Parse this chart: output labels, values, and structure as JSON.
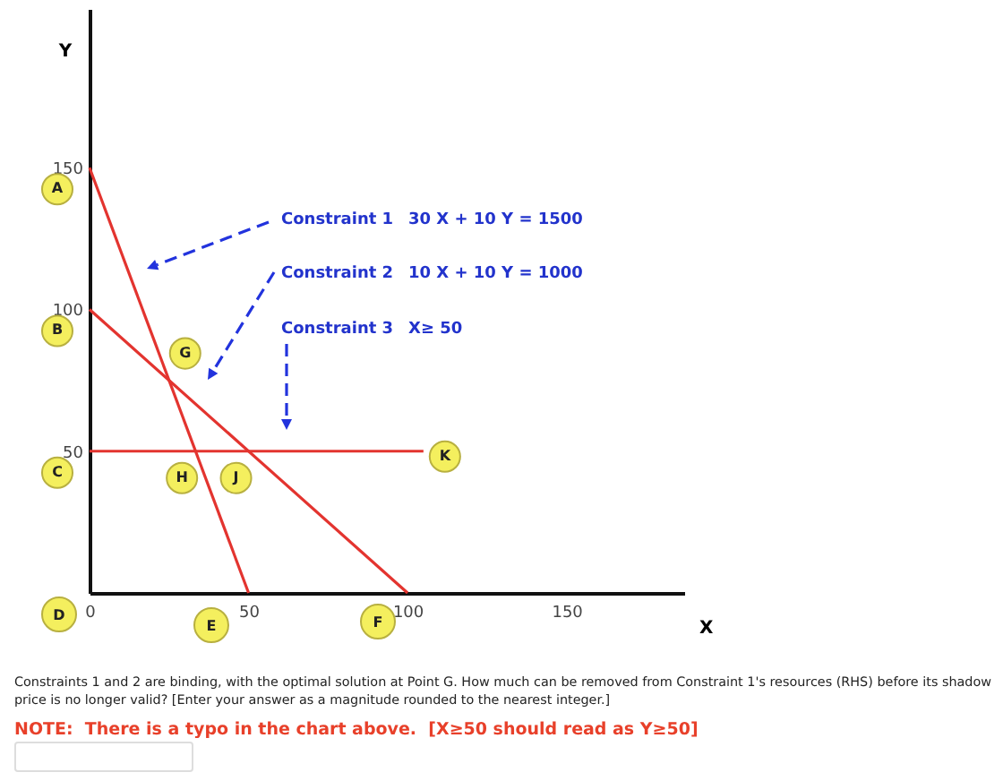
{
  "chart_data": {
    "type": "line",
    "xlabel": "X",
    "ylabel": "Y",
    "xlim": [
      0,
      187
    ],
    "ylim": [
      0,
      206
    ],
    "xticks": [
      0,
      50,
      100,
      150
    ],
    "yticks": [
      50,
      100,
      150
    ],
    "line_style": "solid",
    "marker": "none",
    "series": [
      {
        "color": "#e3342f",
        "x": [
          0,
          50
        ],
        "values": [
          150,
          0
        ]
      },
      {
        "color": "#e3342f",
        "x": [
          0,
          100
        ],
        "values": [
          100,
          0
        ]
      },
      {
        "color": "#e3342f",
        "x": [
          0,
          105
        ],
        "values": [
          50,
          50
        ]
      }
    ],
    "annotations": [
      {
        "text": "A",
        "x": 0,
        "y": 150
      },
      {
        "text": "B",
        "x": 0,
        "y": 100
      },
      {
        "text": "C",
        "x": 0,
        "y": 50
      },
      {
        "text": "G",
        "x": 25,
        "y": 75
      },
      {
        "text": "H",
        "x": 33,
        "y": 50
      },
      {
        "text": "J",
        "x": 50,
        "y": 50
      },
      {
        "text": "K",
        "x": 105,
        "y": 50
      },
      "D",
      "E",
      "F",
      "Constraint 1",
      "30 X + 10 Y = 1500",
      "Constraint 2",
      "10 X + 10 Y = 1000",
      "Constraint 3",
      "X≥ 50",
      "Constraints 1 and 2 are binding, with the optimal solution at Point G.   How much can be removed from Constraint 1's resources (RHS) before its shadow price is no longer valid?  [Enter your answer as a magnitude rounded to the nearest integer.]",
      "NOTE:  There is a typo in the chart above.  [X≥50 should read as Y≥50]"
    ]
  }
}
